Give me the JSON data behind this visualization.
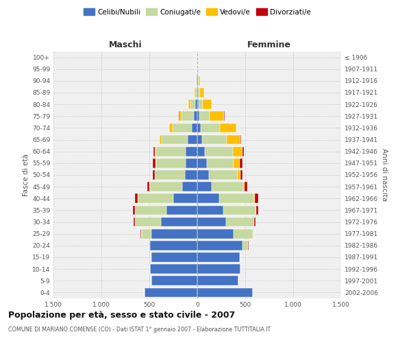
{
  "age_groups": [
    "0-4",
    "5-9",
    "10-14",
    "15-19",
    "20-24",
    "25-29",
    "30-34",
    "35-39",
    "40-44",
    "45-49",
    "50-54",
    "55-59",
    "60-64",
    "65-69",
    "70-74",
    "75-79",
    "80-84",
    "85-89",
    "90-94",
    "95-99",
    "100+"
  ],
  "birth_years": [
    "2002-2006",
    "1997-2001",
    "1992-1996",
    "1987-1991",
    "1982-1986",
    "1977-1981",
    "1972-1976",
    "1967-1971",
    "1962-1966",
    "1957-1961",
    "1952-1956",
    "1947-1951",
    "1942-1946",
    "1937-1941",
    "1932-1936",
    "1927-1931",
    "1922-1926",
    "1917-1921",
    "1912-1916",
    "1907-1911",
    "≤ 1906"
  ],
  "maschi": {
    "celibi": [
      550,
      480,
      490,
      480,
      490,
      480,
      380,
      320,
      250,
      155,
      130,
      120,
      120,
      100,
      60,
      35,
      20,
      10,
      5,
      2,
      2
    ],
    "coniugati": [
      2,
      2,
      2,
      5,
      15,
      100,
      270,
      330,
      370,
      340,
      310,
      310,
      310,
      270,
      200,
      130,
      55,
      20,
      8,
      3,
      2
    ],
    "vedovi": [
      0,
      0,
      0,
      0,
      2,
      5,
      2,
      2,
      2,
      2,
      3,
      5,
      10,
      20,
      30,
      20,
      15,
      5,
      2,
      0,
      0
    ],
    "divorziati": [
      0,
      0,
      0,
      0,
      2,
      5,
      10,
      20,
      30,
      25,
      20,
      30,
      15,
      5,
      5,
      5,
      2,
      0,
      0,
      0,
      0
    ]
  },
  "femmine": {
    "nubili": [
      580,
      430,
      450,
      440,
      470,
      380,
      300,
      270,
      230,
      150,
      120,
      100,
      80,
      50,
      35,
      20,
      15,
      10,
      5,
      2,
      2
    ],
    "coniugate": [
      2,
      2,
      2,
      10,
      60,
      200,
      290,
      340,
      360,
      330,
      300,
      280,
      290,
      260,
      200,
      110,
      45,
      20,
      10,
      3,
      2
    ],
    "vedove": [
      0,
      0,
      0,
      0,
      2,
      3,
      3,
      5,
      10,
      15,
      30,
      60,
      100,
      140,
      170,
      150,
      90,
      40,
      15,
      5,
      2
    ],
    "divorziate": [
      0,
      0,
      0,
      0,
      2,
      5,
      15,
      20,
      35,
      25,
      20,
      30,
      15,
      10,
      5,
      5,
      2,
      0,
      0,
      0,
      0
    ]
  },
  "colors": {
    "celibi": "#4472c4",
    "coniugati": "#c5d9a0",
    "vedovi": "#ffc000",
    "divorziati": "#c0000c"
  },
  "xlim": 1500,
  "title": "Popolazione per età, sesso e stato civile - 2007",
  "subtitle": "COMUNE DI MARIANO COMENSE (CO) - Dati ISTAT 1° gennaio 2007 - Elaborazione TUTTITALIA.IT",
  "ylabel_left": "Fasce di età",
  "ylabel_right": "Anni di nascita",
  "xlabel_left": "Maschi",
  "xlabel_right": "Femmine",
  "bg_color": "#ffffff",
  "plot_bg": "#f0f0f0",
  "grid_color": "#cccccc"
}
